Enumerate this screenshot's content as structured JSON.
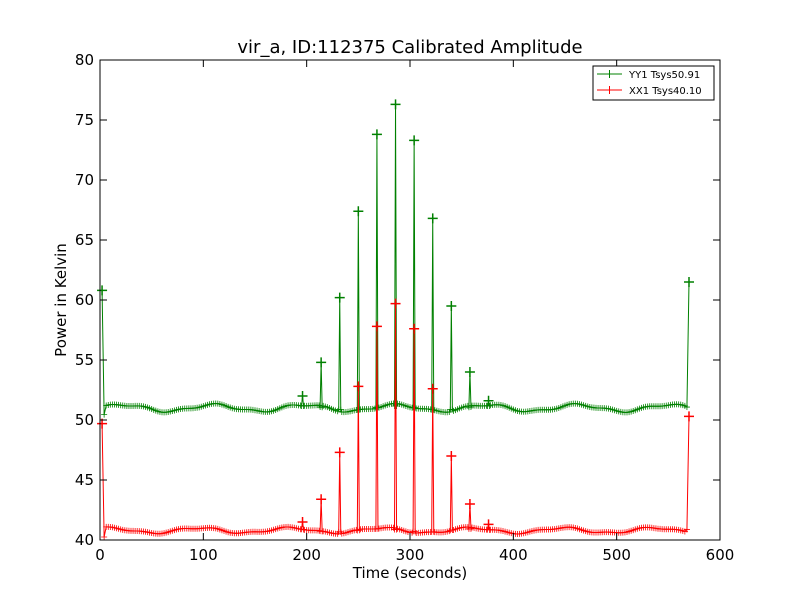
{
  "chart_data": {
    "type": "line",
    "title": "vir_a, ID:112375 Calibrated Amplitude",
    "xlabel": "Time (seconds)",
    "ylabel": "Power in Kelvin",
    "xlim": [
      0,
      600
    ],
    "ylim": [
      40,
      80
    ],
    "x_ticks": [
      0,
      100,
      200,
      300,
      400,
      500,
      600
    ],
    "y_ticks": [
      40,
      45,
      50,
      55,
      60,
      65,
      70,
      75,
      80
    ],
    "x_tick_labels": [
      "0",
      "100",
      "200",
      "300",
      "400",
      "500",
      "600"
    ],
    "y_tick_labels": [
      "40",
      "45",
      "50",
      "55",
      "60",
      "65",
      "70",
      "75",
      "80"
    ],
    "grid": false,
    "legend_position": "top-right",
    "series": [
      {
        "name": "YY1 Tsys50.91",
        "color": "#008000",
        "baseline": 51.0,
        "baseline_amplitude": 0.28,
        "start_point": {
          "x": 2,
          "y": 60.8
        },
        "end_point": {
          "x": 570,
          "y": 61.5
        },
        "peaks": [
          {
            "x": 196,
            "y": 52.0
          },
          {
            "x": 214,
            "y": 54.8
          },
          {
            "x": 232,
            "y": 60.2
          },
          {
            "x": 250,
            "y": 67.4
          },
          {
            "x": 268,
            "y": 73.8
          },
          {
            "x": 286,
            "y": 76.3
          },
          {
            "x": 304,
            "y": 73.3
          },
          {
            "x": 322,
            "y": 66.8
          },
          {
            "x": 340,
            "y": 59.5
          },
          {
            "x": 358,
            "y": 54.0
          },
          {
            "x": 376,
            "y": 51.6
          }
        ]
      },
      {
        "name": "XX1 Tsys40.10",
        "color": "#ff0000",
        "baseline": 40.8,
        "baseline_amplitude": 0.22,
        "start_point": {
          "x": 2,
          "y": 49.7
        },
        "end_point": {
          "x": 570,
          "y": 50.3
        },
        "peaks": [
          {
            "x": 196,
            "y": 41.5
          },
          {
            "x": 214,
            "y": 43.4
          },
          {
            "x": 232,
            "y": 47.3
          },
          {
            "x": 250,
            "y": 52.8
          },
          {
            "x": 268,
            "y": 57.8
          },
          {
            "x": 286,
            "y": 59.7
          },
          {
            "x": 304,
            "y": 57.6
          },
          {
            "x": 322,
            "y": 52.6
          },
          {
            "x": 340,
            "y": 47.0
          },
          {
            "x": 358,
            "y": 43.0
          },
          {
            "x": 376,
            "y": 41.3
          }
        ]
      }
    ]
  }
}
